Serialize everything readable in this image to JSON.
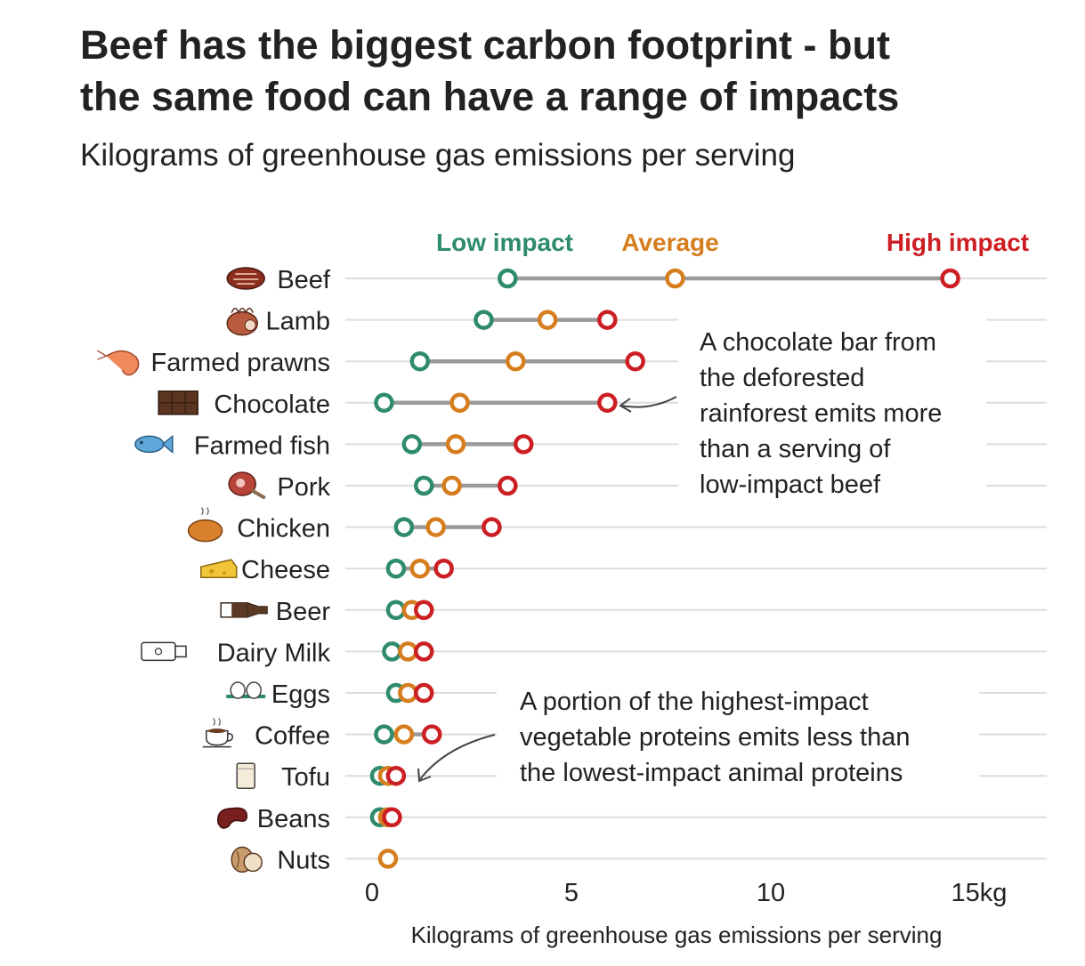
{
  "title_lines": [
    "Beef has the biggest carbon footprint - but",
    "the same food can have a range of impacts"
  ],
  "subtitle": "Kilograms of greenhouse gas emissions per serving",
  "legend": {
    "low": "Low impact",
    "average": "Average",
    "high": "High impact"
  },
  "colors": {
    "low": "#2e8b6e",
    "average": "#d67d1d",
    "high": "#cc1f24",
    "range_line": "#9a9a9a",
    "grid": "#dddddd",
    "text": "#222222"
  },
  "annotations": [
    {
      "id": "chocolate",
      "lines": [
        "A chocolate bar from",
        "the deforested",
        "rainforest emits more",
        "than a serving of",
        "low-impact beef"
      ]
    },
    {
      "id": "vegetable",
      "lines": [
        "A portion of the highest-impact",
        "vegetable proteins emits less than",
        "the lowest-impact animal proteins"
      ]
    }
  ],
  "chart_data": {
    "type": "dot-range",
    "title": "Beef has the biggest carbon footprint - but the same food can have a range of impacts",
    "subtitle": "Kilograms of greenhouse gas emissions per serving",
    "xlabel": "Kilograms of greenhouse gas emissions per serving",
    "xlim": [
      0,
      17
    ],
    "x_ticks": [
      0,
      5,
      10,
      15
    ],
    "x_tick_labels": [
      "0",
      "5",
      "10",
      "15kg"
    ],
    "grid": true,
    "legend_position": "top",
    "series_names": [
      "Low impact",
      "Average",
      "High impact"
    ],
    "categories": [
      {
        "name": "Beef",
        "icon": "steak-icon",
        "low": 3.4,
        "avg": 7.6,
        "high": 14.5
      },
      {
        "name": "Lamb",
        "icon": "lamb-leg-icon",
        "low": 2.8,
        "avg": 4.4,
        "high": 5.9
      },
      {
        "name": "Farmed prawns",
        "icon": "prawn-icon",
        "low": 1.2,
        "avg": 3.6,
        "high": 6.6
      },
      {
        "name": "Chocolate",
        "icon": "chocolate-bar-icon",
        "low": 0.3,
        "avg": 2.2,
        "high": 5.9
      },
      {
        "name": "Farmed fish",
        "icon": "fish-icon",
        "low": 1.0,
        "avg": 2.1,
        "high": 3.8
      },
      {
        "name": "Pork",
        "icon": "ham-icon",
        "low": 1.3,
        "avg": 2.0,
        "high": 3.4
      },
      {
        "name": "Chicken",
        "icon": "roast-chicken-icon",
        "low": 0.8,
        "avg": 1.6,
        "high": 3.0
      },
      {
        "name": "Cheese",
        "icon": "cheese-icon",
        "low": 0.6,
        "avg": 1.2,
        "high": 1.8
      },
      {
        "name": "Beer",
        "icon": "beer-bottle-icon",
        "low": 0.6,
        "avg": 1.0,
        "high": 1.3
      },
      {
        "name": "Dairy Milk",
        "icon": "milk-bottle-icon",
        "low": 0.5,
        "avg": 0.9,
        "high": 1.3
      },
      {
        "name": "Eggs",
        "icon": "eggs-icon",
        "low": 0.6,
        "avg": 0.9,
        "high": 1.3
      },
      {
        "name": "Coffee",
        "icon": "coffee-cup-icon",
        "low": 0.3,
        "avg": 0.8,
        "high": 1.5
      },
      {
        "name": "Tofu",
        "icon": "tofu-icon",
        "low": 0.2,
        "avg": 0.4,
        "high": 0.6
      },
      {
        "name": "Beans",
        "icon": "bean-icon",
        "low": 0.2,
        "avg": 0.4,
        "high": 0.5
      },
      {
        "name": "Nuts",
        "icon": "nut-icon",
        "low": null,
        "avg": 0.4,
        "high": null
      }
    ]
  }
}
